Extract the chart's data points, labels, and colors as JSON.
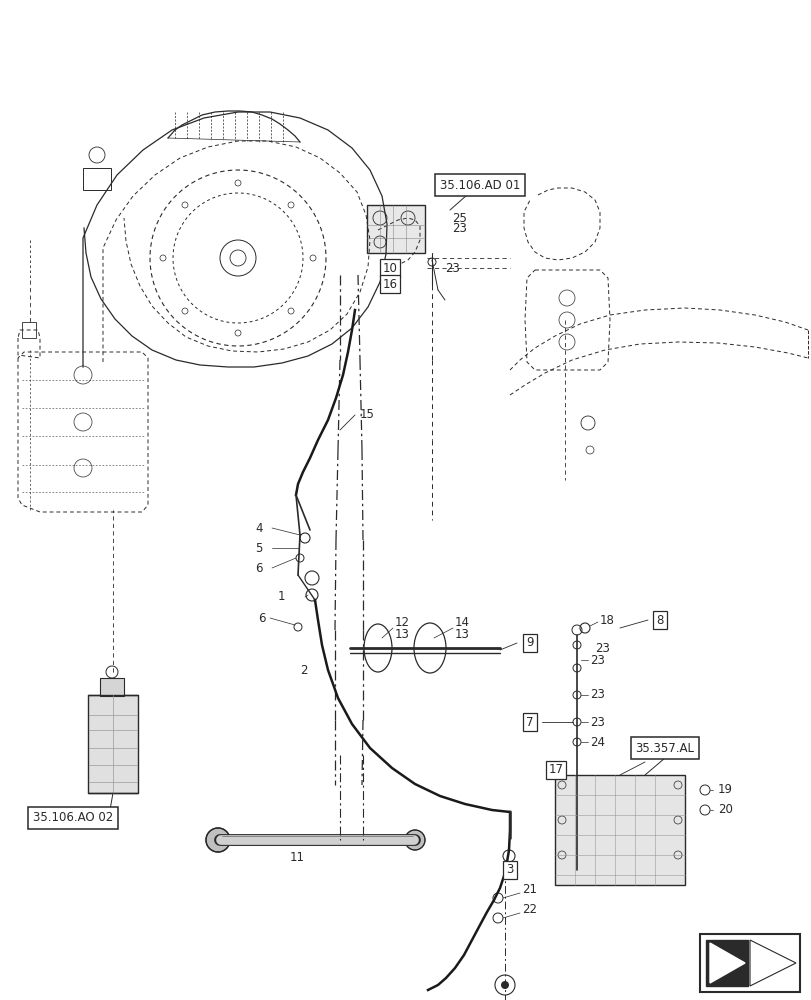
{
  "background_color": "#ffffff",
  "line_color": "#2a2a2a",
  "box_facecolor": "#ffffff",
  "box_edgecolor": "#2a2a2a",
  "font_size_label": 8.5,
  "font_size_ref": 8.5,
  "labels": {
    "ref_ad01": "35.106.AD 01",
    "ref_ao02": "35.106.AO 02",
    "ref_al": "35.357.AL",
    "n25": "25",
    "n23a": "23",
    "n10": "10",
    "n16": "16",
    "n23b": "23",
    "n15": "15",
    "n14": "14",
    "n13a": "13",
    "n13b": "13",
    "n12": "12",
    "n1": "1",
    "n6a": "6",
    "n4": "4",
    "n5": "5",
    "n6b": "6",
    "n2": "2",
    "n11": "11",
    "n9": "9",
    "n18": "18",
    "n8": "8",
    "n23c": "23",
    "n7": "7",
    "n23d": "23",
    "n24": "24",
    "n20": "20",
    "n19": "19",
    "n17": "17",
    "n21": "21",
    "n22": "22",
    "n3": "3"
  }
}
